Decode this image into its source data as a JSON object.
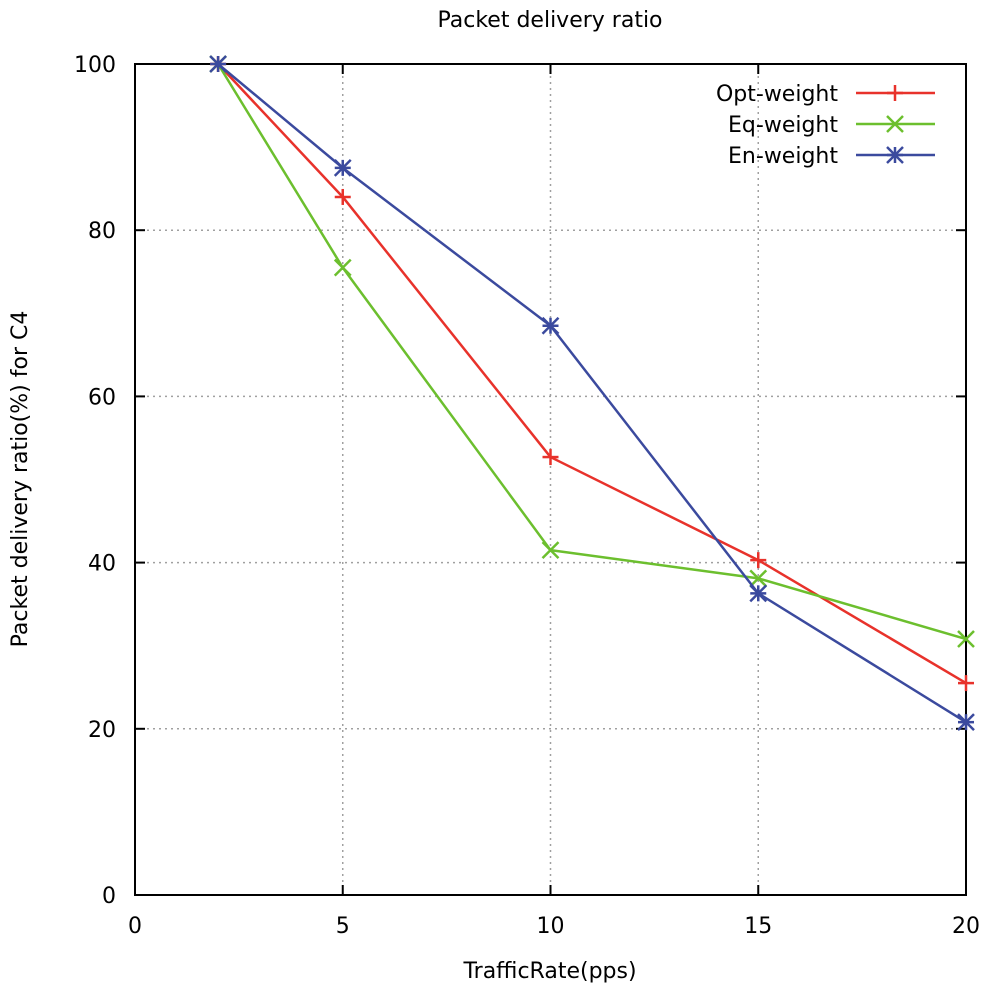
{
  "chart_data": {
    "type": "line",
    "title": "Packet delivery ratio",
    "xlabel": "TrafficRate(pps)",
    "ylabel": "Packet delivery ratio(%) for C4",
    "xlim": [
      0,
      20
    ],
    "ylim": [
      0,
      100
    ],
    "xticks": [
      0,
      5,
      10,
      15,
      20
    ],
    "yticks": [
      0,
      20,
      40,
      60,
      80,
      100
    ],
    "grid": true,
    "legend_position": "top-right",
    "series": [
      {
        "name": "Opt-weight",
        "color": "#e8322b",
        "marker": "plus",
        "x": [
          2,
          5,
          10,
          15,
          20
        ],
        "y": [
          100,
          84,
          52.7,
          40.3,
          25.5
        ]
      },
      {
        "name": "Eq-weight",
        "color": "#6cbf2e",
        "marker": "cross",
        "x": [
          2,
          5,
          10,
          15,
          20
        ],
        "y": [
          100,
          75.5,
          41.5,
          38.1,
          30.8
        ]
      },
      {
        "name": "En-weight",
        "color": "#3b4a9e",
        "marker": "star",
        "x": [
          2,
          5,
          10,
          15,
          20
        ],
        "y": [
          100,
          87.5,
          68.5,
          36.3,
          20.8
        ]
      }
    ]
  }
}
